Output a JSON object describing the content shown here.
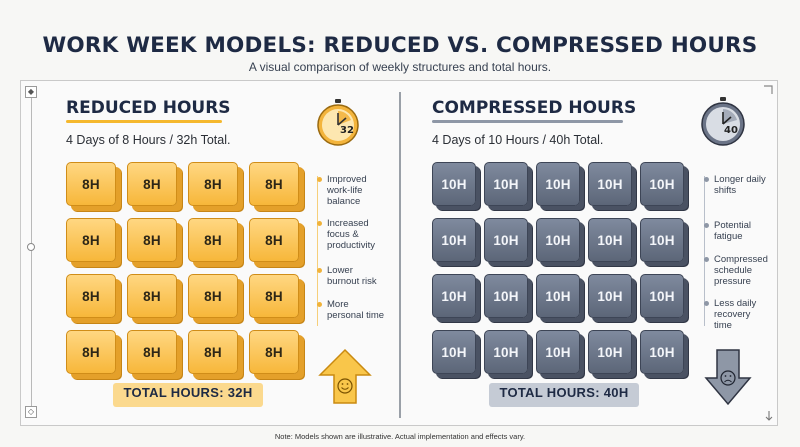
{
  "header": {
    "title": "WORK WEEK MODELS: REDUCED VS. COMPRESSED HOURS",
    "subtitle": "A visual comparison of weekly structures and total hours."
  },
  "reduced": {
    "title": "REDUCED HOURS",
    "subtitle": "4 Days of 8 Hours / 32h Total.",
    "clock_label": "32",
    "block_label": "8H",
    "grid_rows": 4,
    "grid_cols": 4,
    "bullets": [
      "Improved work-life balance",
      "Increased focus & productivity",
      "Lower burnout risk",
      "More personal time"
    ],
    "total": "TOTAL HOURS: 32H",
    "arrow_icon": "arrow-up-smiley-icon",
    "accent": "#f5b82e"
  },
  "compressed": {
    "title": "COMPRESSED HOURS",
    "subtitle": "4 Days of 10 Hours / 40h Total.",
    "clock_label": "40",
    "block_label": "10H",
    "grid_rows": 4,
    "grid_cols": 5,
    "bullets": [
      "Longer daily shifts",
      "Potential fatigue",
      "Compressed schedule pressure",
      "Less daily recovery time"
    ],
    "total": "TOTAL HOURS: 40H",
    "arrow_icon": "arrow-down-sad-icon",
    "accent": "#8e97a6"
  },
  "footer": {
    "note": "Note: Models shown are illustrative. Actual implementation and effects vary."
  }
}
